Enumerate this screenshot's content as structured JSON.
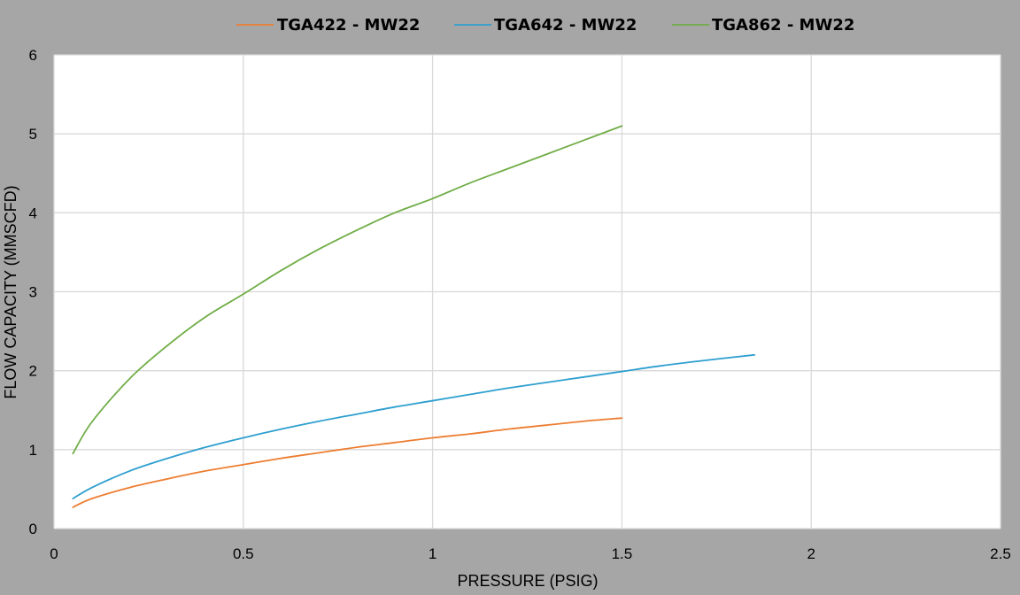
{
  "chart_data": {
    "type": "line",
    "title": "",
    "xlabel": "PRESSURE (PSIG)",
    "ylabel": "FLOW CAPACITY (MMSCFD)",
    "xlim": [
      0,
      2.5
    ],
    "ylim": [
      0,
      6
    ],
    "x_ticks": [
      "0",
      "0.5",
      "1",
      "1.5",
      "2",
      "2.5"
    ],
    "y_ticks": [
      "0",
      "1",
      "2",
      "3",
      "4",
      "5",
      "6"
    ],
    "grid": true,
    "legend_position": "top-center",
    "plot_background": "#ffffff",
    "figure_background": "#a6a6a6",
    "grid_color": "#d9d9d9",
    "series": [
      {
        "name": "TGA422 - MW22",
        "color": "#ed7d31",
        "x": [
          0.05,
          0.1,
          0.2,
          0.3,
          0.4,
          0.5,
          0.6,
          0.7,
          0.8,
          0.9,
          1.0,
          1.1,
          1.2,
          1.3,
          1.4,
          1.5
        ],
        "y": [
          0.27,
          0.38,
          0.52,
          0.63,
          0.73,
          0.81,
          0.89,
          0.96,
          1.03,
          1.09,
          1.15,
          1.2,
          1.26,
          1.31,
          1.36,
          1.4
        ]
      },
      {
        "name": "TGA642 - MW22",
        "color": "#2e9fcf",
        "x": [
          0.05,
          0.1,
          0.2,
          0.3,
          0.4,
          0.5,
          0.6,
          0.7,
          0.8,
          0.9,
          1.0,
          1.1,
          1.2,
          1.3,
          1.4,
          1.5,
          1.6,
          1.7,
          1.85
        ],
        "y": [
          0.38,
          0.52,
          0.73,
          0.89,
          1.03,
          1.15,
          1.26,
          1.36,
          1.45,
          1.54,
          1.62,
          1.7,
          1.78,
          1.85,
          1.92,
          1.99,
          2.06,
          2.12,
          2.2
        ]
      },
      {
        "name": "TGA862 - MW22",
        "color": "#70ad47",
        "x": [
          0.05,
          0.1,
          0.2,
          0.3,
          0.4,
          0.5,
          0.6,
          0.7,
          0.8,
          0.9,
          1.0,
          1.1,
          1.2,
          1.3,
          1.4,
          1.5
        ],
        "y": [
          0.95,
          1.35,
          1.9,
          2.32,
          2.68,
          2.97,
          3.27,
          3.54,
          3.78,
          4.0,
          4.18,
          4.38,
          4.56,
          4.74,
          4.92,
          5.1
        ]
      }
    ]
  }
}
